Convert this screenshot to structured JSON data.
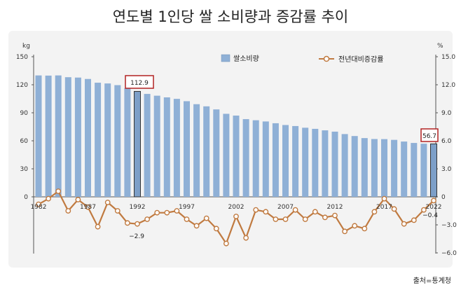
{
  "chart_data": {
    "type": "bar",
    "title": "연도별 1인당 쌀 소비량과 증감률 추이",
    "source": "출처=통계청",
    "left_axis": {
      "unit": "kg",
      "range": [
        0,
        150
      ],
      "ticks": [
        0,
        30,
        60,
        90,
        120,
        150
      ]
    },
    "right_axis": {
      "unit": "%",
      "range": [
        -6.0,
        15.0
      ],
      "ticks": [
        "-6.0",
        "-3.0",
        "0",
        "3.0",
        "6.0",
        "9.0",
        "12.0",
        "15.0"
      ]
    },
    "x_labels": [
      "1982",
      "1987",
      "1992",
      "1997",
      "2002",
      "2007",
      "2012",
      "2017",
      "2022"
    ],
    "years": [
      1982,
      1983,
      1984,
      1985,
      1986,
      1987,
      1988,
      1989,
      1990,
      1991,
      1992,
      1993,
      1994,
      1995,
      1996,
      1997,
      1998,
      1999,
      2000,
      2001,
      2002,
      2003,
      2004,
      2005,
      2006,
      2007,
      2008,
      2009,
      2010,
      2011,
      2012,
      2013,
      2014,
      2015,
      2016,
      2017,
      2018,
      2019,
      2020,
      2021,
      2022
    ],
    "series": [
      {
        "name": "쌀소비량",
        "type": "bar",
        "axis": "left",
        "color": "#8fb0d6",
        "values": [
          130.0,
          129.8,
          130.0,
          128.1,
          127.7,
          126.2,
          122.2,
          121.4,
          119.6,
          116.3,
          112.9,
          110.2,
          108.3,
          106.5,
          104.9,
          102.4,
          99.2,
          96.9,
          93.6,
          88.9,
          87.0,
          83.2,
          82.0,
          80.7,
          78.8,
          76.9,
          75.8,
          74.0,
          72.8,
          71.2,
          69.8,
          67.2,
          65.1,
          62.9,
          61.9,
          61.8,
          61.0,
          59.2,
          57.7,
          56.9,
          56.7
        ]
      },
      {
        "name": "전년대비증감률",
        "type": "line",
        "axis": "right",
        "color": "#c07a40",
        "values": [
          -0.8,
          -0.2,
          0.6,
          -1.5,
          -0.3,
          -1.1,
          -3.2,
          -0.6,
          -1.5,
          -2.8,
          -2.9,
          -2.4,
          -1.7,
          -1.7,
          -1.5,
          -2.4,
          -3.1,
          -2.3,
          -3.4,
          -5.0,
          -2.1,
          -4.4,
          -1.4,
          -1.6,
          -2.4,
          -2.4,
          -1.4,
          -2.4,
          -1.6,
          -2.2,
          -2.0,
          -3.7,
          -3.1,
          -3.4,
          -1.6,
          -0.2,
          -1.3,
          -2.9,
          -2.5,
          -1.4,
          -0.4
        ]
      }
    ],
    "annotations": [
      {
        "label": "112.9",
        "year": 1992,
        "series": "쌀소비량"
      },
      {
        "label": "56.7",
        "year": 2022,
        "series": "쌀소비량"
      },
      {
        "label": "-2.9",
        "year": 1992,
        "series": "전년대비증감률"
      },
      {
        "label": "-0.4",
        "year": 2022,
        "series": "전년대비증감률"
      }
    ]
  }
}
